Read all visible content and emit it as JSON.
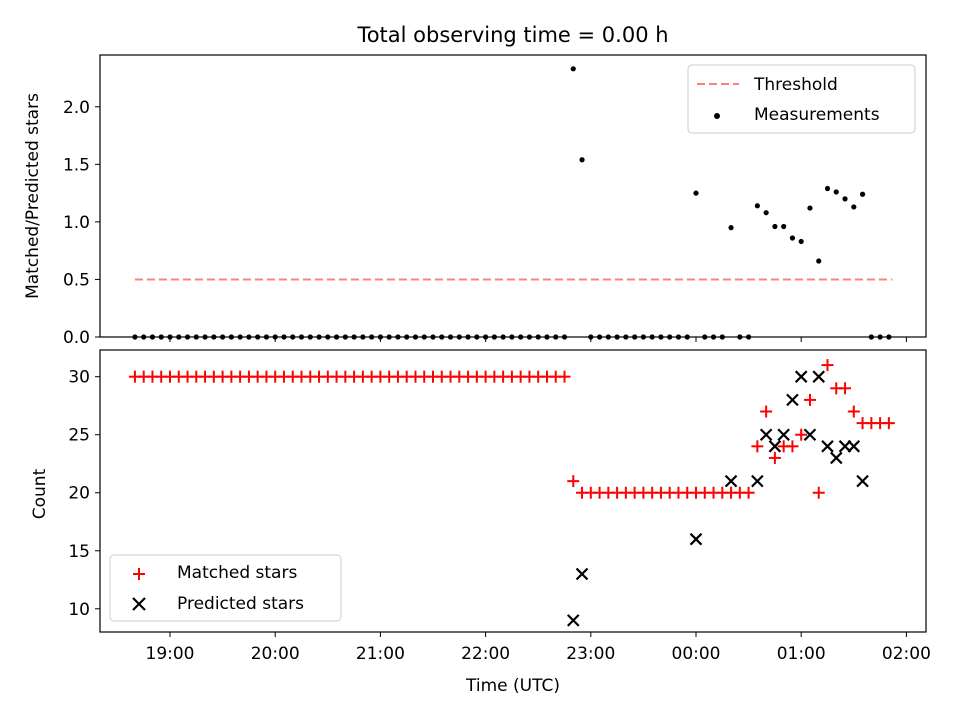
{
  "figure": {
    "title": "Total observing time = 0.00 h",
    "xlabel": "Time (UTC)",
    "xticks": [
      "19:00",
      "20:00",
      "21:00",
      "22:00",
      "23:00",
      "00:00",
      "01:00",
      "02:00"
    ]
  },
  "chart_data": [
    {
      "type": "scatter",
      "ylabel": "Matched/Predicted stars",
      "ylim": [
        0,
        2.45
      ],
      "yticks": [
        "0.0",
        "0.5",
        "1.0",
        "1.5",
        "2.0"
      ],
      "ytick_values": [
        0,
        0.5,
        1.0,
        1.5,
        2.0
      ],
      "legend_position": "top-right",
      "threshold": {
        "name": "Threshold",
        "value": 0.5,
        "x_start": "18:40",
        "x_end": "01:52",
        "color": "#ff7f7f"
      },
      "measurements": {
        "name": "Measurements",
        "color": "#000000",
        "points": [
          [
            "18:40",
            0
          ],
          [
            "18:45",
            0
          ],
          [
            "18:50",
            0
          ],
          [
            "18:55",
            0
          ],
          [
            "19:00",
            0
          ],
          [
            "19:05",
            0
          ],
          [
            "19:10",
            0
          ],
          [
            "19:15",
            0
          ],
          [
            "19:20",
            0
          ],
          [
            "19:25",
            0
          ],
          [
            "19:30",
            0
          ],
          [
            "19:35",
            0
          ],
          [
            "19:40",
            0
          ],
          [
            "19:45",
            0
          ],
          [
            "19:50",
            0
          ],
          [
            "19:55",
            0
          ],
          [
            "20:00",
            0
          ],
          [
            "20:05",
            0
          ],
          [
            "20:10",
            0
          ],
          [
            "20:15",
            0
          ],
          [
            "20:20",
            0
          ],
          [
            "20:25",
            0
          ],
          [
            "20:30",
            0
          ],
          [
            "20:35",
            0
          ],
          [
            "20:40",
            0
          ],
          [
            "20:45",
            0
          ],
          [
            "20:50",
            0
          ],
          [
            "20:55",
            0
          ],
          [
            "21:00",
            0
          ],
          [
            "21:05",
            0
          ],
          [
            "21:10",
            0
          ],
          [
            "21:15",
            0
          ],
          [
            "21:20",
            0
          ],
          [
            "21:25",
            0
          ],
          [
            "21:30",
            0
          ],
          [
            "21:35",
            0
          ],
          [
            "21:40",
            0
          ],
          [
            "21:45",
            0
          ],
          [
            "21:50",
            0
          ],
          [
            "21:55",
            0
          ],
          [
            "22:00",
            0
          ],
          [
            "22:05",
            0
          ],
          [
            "22:10",
            0
          ],
          [
            "22:15",
            0
          ],
          [
            "22:20",
            0
          ],
          [
            "22:25",
            0
          ],
          [
            "22:30",
            0
          ],
          [
            "22:35",
            0
          ],
          [
            "22:40",
            0
          ],
          [
            "22:45",
            0
          ],
          [
            "22:50",
            2.33
          ],
          [
            "22:55",
            1.54
          ],
          [
            "23:00",
            0
          ],
          [
            "23:05",
            0
          ],
          [
            "23:10",
            0
          ],
          [
            "23:15",
            0
          ],
          [
            "23:20",
            0
          ],
          [
            "23:25",
            0
          ],
          [
            "23:30",
            0
          ],
          [
            "23:35",
            0
          ],
          [
            "23:40",
            0
          ],
          [
            "23:45",
            0
          ],
          [
            "23:50",
            0
          ],
          [
            "23:55",
            0
          ],
          [
            "00:00",
            1.25
          ],
          [
            "00:05",
            0
          ],
          [
            "00:10",
            0
          ],
          [
            "00:15",
            0
          ],
          [
            "00:20",
            0.95
          ],
          [
            "00:25",
            0
          ],
          [
            "00:30",
            0
          ],
          [
            "00:35",
            1.14
          ],
          [
            "00:40",
            1.08
          ],
          [
            "00:45",
            0.96
          ],
          [
            "00:50",
            0.96
          ],
          [
            "00:55",
            0.86
          ],
          [
            "01:00",
            0.83
          ],
          [
            "01:05",
            1.12
          ],
          [
            "01:10",
            0.66
          ],
          [
            "01:15",
            1.29
          ],
          [
            "01:20",
            1.26
          ],
          [
            "01:25",
            1.2
          ],
          [
            "01:30",
            1.13
          ],
          [
            "01:35",
            1.24
          ],
          [
            "01:40",
            0
          ],
          [
            "01:45",
            0
          ],
          [
            "01:50",
            0
          ]
        ]
      }
    },
    {
      "type": "scatter",
      "ylabel": "Count",
      "ylim": [
        8,
        32.3
      ],
      "yticks": [
        "10",
        "15",
        "20",
        "25",
        "30"
      ],
      "ytick_values": [
        10,
        15,
        20,
        25,
        30
      ],
      "legend_position": "bottom-left",
      "matched": {
        "name": "Matched stars",
        "color": "#ff0000",
        "points": [
          [
            "18:40",
            30
          ],
          [
            "18:45",
            30
          ],
          [
            "18:50",
            30
          ],
          [
            "18:55",
            30
          ],
          [
            "19:00",
            30
          ],
          [
            "19:05",
            30
          ],
          [
            "19:10",
            30
          ],
          [
            "19:15",
            30
          ],
          [
            "19:20",
            30
          ],
          [
            "19:25",
            30
          ],
          [
            "19:30",
            30
          ],
          [
            "19:35",
            30
          ],
          [
            "19:40",
            30
          ],
          [
            "19:45",
            30
          ],
          [
            "19:50",
            30
          ],
          [
            "19:55",
            30
          ],
          [
            "20:00",
            30
          ],
          [
            "20:05",
            30
          ],
          [
            "20:10",
            30
          ],
          [
            "20:15",
            30
          ],
          [
            "20:20",
            30
          ],
          [
            "20:25",
            30
          ],
          [
            "20:30",
            30
          ],
          [
            "20:35",
            30
          ],
          [
            "20:40",
            30
          ],
          [
            "20:45",
            30
          ],
          [
            "20:50",
            30
          ],
          [
            "20:55",
            30
          ],
          [
            "21:00",
            30
          ],
          [
            "21:05",
            30
          ],
          [
            "21:10",
            30
          ],
          [
            "21:15",
            30
          ],
          [
            "21:20",
            30
          ],
          [
            "21:25",
            30
          ],
          [
            "21:30",
            30
          ],
          [
            "21:35",
            30
          ],
          [
            "21:40",
            30
          ],
          [
            "21:45",
            30
          ],
          [
            "21:50",
            30
          ],
          [
            "21:55",
            30
          ],
          [
            "22:00",
            30
          ],
          [
            "22:05",
            30
          ],
          [
            "22:10",
            30
          ],
          [
            "22:15",
            30
          ],
          [
            "22:20",
            30
          ],
          [
            "22:25",
            30
          ],
          [
            "22:30",
            30
          ],
          [
            "22:35",
            30
          ],
          [
            "22:40",
            30
          ],
          [
            "22:45",
            30
          ],
          [
            "22:50",
            21
          ],
          [
            "22:55",
            20
          ],
          [
            "23:00",
            20
          ],
          [
            "23:05",
            20
          ],
          [
            "23:10",
            20
          ],
          [
            "23:15",
            20
          ],
          [
            "23:20",
            20
          ],
          [
            "23:25",
            20
          ],
          [
            "23:30",
            20
          ],
          [
            "23:35",
            20
          ],
          [
            "23:40",
            20
          ],
          [
            "23:45",
            20
          ],
          [
            "23:50",
            20
          ],
          [
            "23:55",
            20
          ],
          [
            "00:00",
            20
          ],
          [
            "00:05",
            20
          ],
          [
            "00:10",
            20
          ],
          [
            "00:15",
            20
          ],
          [
            "00:20",
            20
          ],
          [
            "00:25",
            20
          ],
          [
            "00:30",
            20
          ],
          [
            "00:35",
            24
          ],
          [
            "00:40",
            27
          ],
          [
            "00:45",
            23
          ],
          [
            "00:50",
            24
          ],
          [
            "00:55",
            24
          ],
          [
            "01:00",
            25
          ],
          [
            "01:05",
            28
          ],
          [
            "01:10",
            20
          ],
          [
            "01:15",
            31
          ],
          [
            "01:20",
            29
          ],
          [
            "01:25",
            29
          ],
          [
            "01:30",
            27
          ],
          [
            "01:35",
            26
          ],
          [
            "01:40",
            26
          ],
          [
            "01:45",
            26
          ],
          [
            "01:50",
            26
          ]
        ]
      },
      "predicted": {
        "name": "Predicted stars",
        "color": "#000000",
        "points": [
          [
            "22:50",
            9
          ],
          [
            "22:55",
            13
          ],
          [
            "00:00",
            16
          ],
          [
            "00:20",
            21
          ],
          [
            "00:35",
            21
          ],
          [
            "00:40",
            25
          ],
          [
            "00:45",
            24
          ],
          [
            "00:50",
            25
          ],
          [
            "00:55",
            28
          ],
          [
            "01:00",
            30
          ],
          [
            "01:05",
            25
          ],
          [
            "01:10",
            30
          ],
          [
            "01:15",
            24
          ],
          [
            "01:20",
            23
          ],
          [
            "01:25",
            24
          ],
          [
            "01:30",
            24
          ],
          [
            "01:35",
            21
          ]
        ]
      }
    }
  ]
}
